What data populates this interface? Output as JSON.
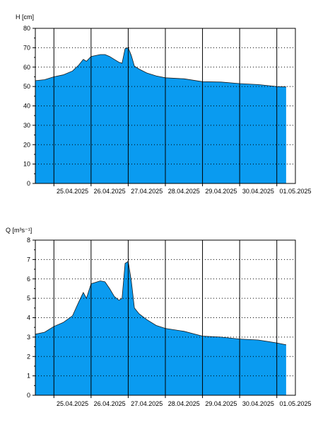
{
  "chart_data": [
    {
      "type": "area",
      "ylabel": "H [cm]",
      "ylim": [
        0,
        80
      ],
      "yticks": [
        0,
        10,
        20,
        30,
        40,
        50,
        60,
        70,
        80
      ],
      "x_range": [
        "2025-04-24 12:00",
        "2025-05-01 12:00"
      ],
      "x_tick_labels": [
        "25.04.2025",
        "26.04.2025",
        "27.04.2025",
        "28.04.2025",
        "29.04.2025",
        "30.04.2025",
        "01.05.2025"
      ],
      "grid": true,
      "fill_color": "#0a9bf0",
      "x": [
        "2025-04-24 12:00",
        "2025-04-24 18:00",
        "2025-04-25 00:00",
        "2025-04-25 06:00",
        "2025-04-25 12:00",
        "2025-04-25 16:00",
        "2025-04-25 19:00",
        "2025-04-25 21:00",
        "2025-04-26 00:00",
        "2025-04-26 06:00",
        "2025-04-26 09:00",
        "2025-04-26 12:00",
        "2025-04-26 15:00",
        "2025-04-26 18:00",
        "2025-04-26 20:00",
        "2025-04-26 22:00",
        "2025-04-27 00:00",
        "2025-04-27 02:00",
        "2025-04-27 04:00",
        "2025-04-27 07:00",
        "2025-04-27 12:00",
        "2025-04-27 18:00",
        "2025-04-28 00:00",
        "2025-04-28 12:00",
        "2025-04-29 00:00",
        "2025-04-29 12:00",
        "2025-04-30 00:00",
        "2025-04-30 12:00",
        "2025-05-01 00:00",
        "2025-05-01 06:00"
      ],
      "y": [
        53,
        53.5,
        55,
        56,
        58,
        61,
        64,
        63,
        65.5,
        66.5,
        66.5,
        65.5,
        64,
        62.5,
        62,
        69.5,
        70,
        66,
        60.5,
        59,
        57,
        55.5,
        54.5,
        54,
        52.5,
        52.3,
        51.5,
        51,
        50,
        49.8
      ]
    },
    {
      "type": "area",
      "ylabel": "Q [m³s⁻¹]",
      "ylim": [
        0,
        8
      ],
      "yticks": [
        0,
        1,
        2,
        3,
        4,
        5,
        6,
        7,
        8
      ],
      "x_range": [
        "2025-04-24 12:00",
        "2025-05-01 12:00"
      ],
      "x_tick_labels": [
        "25.04.2025",
        "26.04.2025",
        "27.04.2025",
        "28.04.2025",
        "29.04.2025",
        "30.04.2025",
        "01.05.2025"
      ],
      "grid": true,
      "fill_color": "#0a9bf0",
      "x": [
        "2025-04-24 12:00",
        "2025-04-24 18:00",
        "2025-04-25 00:00",
        "2025-04-25 06:00",
        "2025-04-25 12:00",
        "2025-04-25 16:00",
        "2025-04-25 19:00",
        "2025-04-25 21:00",
        "2025-04-26 00:00",
        "2025-04-26 06:00",
        "2025-04-26 09:00",
        "2025-04-26 12:00",
        "2025-04-26 15:00",
        "2025-04-26 18:00",
        "2025-04-26 20:00",
        "2025-04-26 22:00",
        "2025-04-27 00:00",
        "2025-04-27 02:00",
        "2025-04-27 04:00",
        "2025-04-27 07:00",
        "2025-04-27 12:00",
        "2025-04-27 18:00",
        "2025-04-28 00:00",
        "2025-04-28 12:00",
        "2025-04-29 00:00",
        "2025-04-29 12:00",
        "2025-04-30 00:00",
        "2025-04-30 12:00",
        "2025-05-01 00:00",
        "2025-05-01 06:00"
      ],
      "y": [
        3.15,
        3.25,
        3.55,
        3.75,
        4.1,
        4.8,
        5.3,
        5.0,
        5.75,
        5.9,
        5.85,
        5.5,
        5.1,
        4.9,
        5.0,
        6.8,
        6.9,
        5.9,
        4.5,
        4.2,
        3.9,
        3.6,
        3.45,
        3.3,
        3.05,
        3.0,
        2.9,
        2.85,
        2.7,
        2.6
      ]
    }
  ]
}
